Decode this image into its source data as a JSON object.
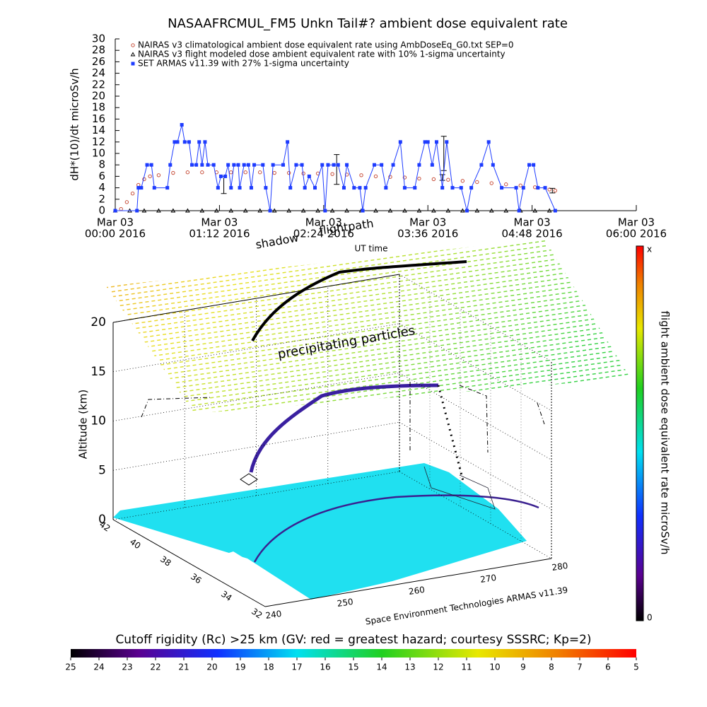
{
  "chart_data": [
    {
      "type": "line",
      "title": "NASAAFRCMUL_FM5 Unkn Tail#? ambient dose equivalent rate",
      "ylabel": "dH*(10)/dt microSv/h",
      "xlabel": "UT time",
      "xlim": [
        0,
        360
      ],
      "xticks": [
        {
          "value": 0,
          "label": [
            "Mar 03",
            "00:00 2016"
          ]
        },
        {
          "value": 72,
          "label": [
            "Mar 03",
            "01:12 2016"
          ]
        },
        {
          "value": 144,
          "label": [
            "Mar 03",
            "02:24 2016"
          ]
        },
        {
          "value": 216,
          "label": [
            "Mar 03",
            "03:36 2016"
          ]
        },
        {
          "value": 288,
          "label": [
            "Mar 03",
            "04:48 2016"
          ]
        },
        {
          "value": 360,
          "label": [
            "Mar 03",
            "06:00 2016"
          ]
        }
      ],
      "ylim": [
        0,
        30
      ],
      "yticks": [
        0,
        2,
        4,
        6,
        8,
        10,
        12,
        14,
        16,
        18,
        20,
        22,
        24,
        26,
        28,
        30
      ],
      "series": [
        {
          "name": "NAIRAS v3 climatological ambient dose equivalent rate using AmbDoseEq_G0.txt SEP=0",
          "color": "#c8503c",
          "marker": "circle",
          "x": [
            0,
            4,
            8,
            12,
            16,
            20,
            24,
            30,
            40,
            50,
            60,
            70,
            80,
            90,
            100,
            110,
            120,
            130,
            140,
            150,
            160,
            170,
            180,
            190,
            200,
            210,
            220,
            230,
            240,
            250,
            260,
            270,
            280,
            290,
            300,
            304
          ],
          "values": [
            0,
            0.3,
            1.5,
            3,
            4.5,
            5.5,
            6,
            6.2,
            6.6,
            6.7,
            6.7,
            6.7,
            6.7,
            6.7,
            6.7,
            6.6,
            6.6,
            6.5,
            6.5,
            6.4,
            6.3,
            6.2,
            6,
            5.9,
            5.8,
            5.6,
            5.5,
            5.4,
            5.2,
            5,
            4.8,
            4.6,
            4.4,
            4.1,
            3.7,
            3.5
          ]
        },
        {
          "name": "NAIRAS v3 flight modeled dose ambient equivalent rate with 10% 1-sigma uncertainty",
          "color": "#000000",
          "marker": "triangle",
          "x": [
            0,
            10,
            20,
            30,
            40,
            50,
            60,
            70,
            80,
            90,
            100,
            110,
            120,
            130,
            140,
            150,
            160,
            170,
            180,
            190,
            200,
            210,
            220,
            230,
            240,
            250,
            260,
            270,
            280,
            290,
            300
          ],
          "values": [
            0,
            0,
            0,
            0,
            0,
            0,
            0,
            0,
            0,
            0,
            0,
            0,
            0,
            0,
            0,
            0,
            0,
            0,
            0,
            0,
            0,
            0,
            0,
            0,
            0,
            0,
            0,
            0,
            0,
            0,
            0
          ],
          "error_bars": [
            {
              "x": 75,
              "value": 4.5,
              "error": 1.5
            },
            {
              "x": 153,
              "value": 7.2,
              "error": 2.6
            },
            {
              "x": 226,
              "value": 5.8,
              "error": 0.5
            },
            {
              "x": 227,
              "value": 10,
              "error": 3
            },
            {
              "x": 302,
              "value": 3.5,
              "error": 0.4
            }
          ]
        },
        {
          "name": "SET ARMAS v11.39 with 27% 1-sigma uncertainty",
          "color": "#1e3cff",
          "marker": "square",
          "line": true,
          "x": [
            0,
            15,
            16,
            18,
            22,
            25,
            27,
            36,
            38,
            41,
            43,
            46,
            48,
            51,
            53,
            56,
            58,
            60,
            62,
            64,
            68,
            71,
            73,
            76,
            78,
            80,
            82,
            85,
            86,
            89,
            92,
            94,
            96,
            102,
            104,
            107,
            109,
            116,
            119,
            121,
            125,
            129,
            131,
            134,
            138,
            143,
            145,
            147,
            151,
            154,
            158,
            160,
            165,
            169,
            171,
            173,
            179,
            184,
            187,
            192,
            197,
            200,
            207,
            210,
            214,
            216,
            219,
            222,
            226,
            229,
            233,
            239,
            243,
            246,
            253,
            258,
            261,
            267,
            277,
            279,
            282,
            286,
            289,
            292,
            297,
            304
          ],
          "values": [
            0,
            0,
            4,
            4,
            8,
            8,
            4,
            4,
            8,
            12,
            12,
            15,
            12,
            12,
            8,
            8,
            12,
            8,
            12,
            8,
            8,
            4,
            6,
            6,
            8,
            4,
            8,
            8,
            4,
            8,
            8,
            4,
            8,
            8,
            4,
            0,
            8,
            8,
            12,
            4,
            8,
            8,
            4,
            6,
            4,
            8,
            0,
            8,
            8,
            8,
            4,
            8,
            4,
            4,
            0,
            4,
            8,
            8,
            4,
            8,
            12,
            4,
            4,
            8,
            12,
            12,
            8,
            12,
            4,
            12,
            4,
            4,
            0,
            4,
            8,
            12,
            8,
            4,
            4,
            0,
            4,
            8,
            8,
            4,
            4,
            0
          ]
        }
      ]
    },
    {
      "type": "box3d",
      "zlabel": "Altitude (km)",
      "zlim": [
        0,
        20
      ],
      "zticks": [
        0,
        5,
        10,
        15,
        20
      ],
      "xlim": [
        240,
        280
      ],
      "xticks": [
        240,
        250,
        260,
        270,
        280
      ],
      "ylim": [
        32,
        42
      ],
      "yticks": [
        32,
        34,
        36,
        38,
        40,
        42
      ],
      "xlabel": "Space Environment Technologies ARMAS v11.39",
      "annotations": [
        "precipitating particles",
        "shadow",
        "flightpath"
      ],
      "colorbar": {
        "label": "flight ambient dose equivalent rate microSv/h",
        "top_label": "x",
        "bottom_label": "0"
      }
    },
    {
      "type": "colorbar",
      "title": "Cutoff rigidity (Rc) >25 km (GV: red = greatest hazard; courtesy SSSRC; Kp=2)",
      "xlim": [
        25,
        5
      ],
      "xticks": [
        25,
        24,
        23,
        22,
        21,
        20,
        19,
        18,
        17,
        16,
        15,
        14,
        13,
        12,
        11,
        10,
        9,
        8,
        7,
        6,
        5
      ]
    }
  ]
}
